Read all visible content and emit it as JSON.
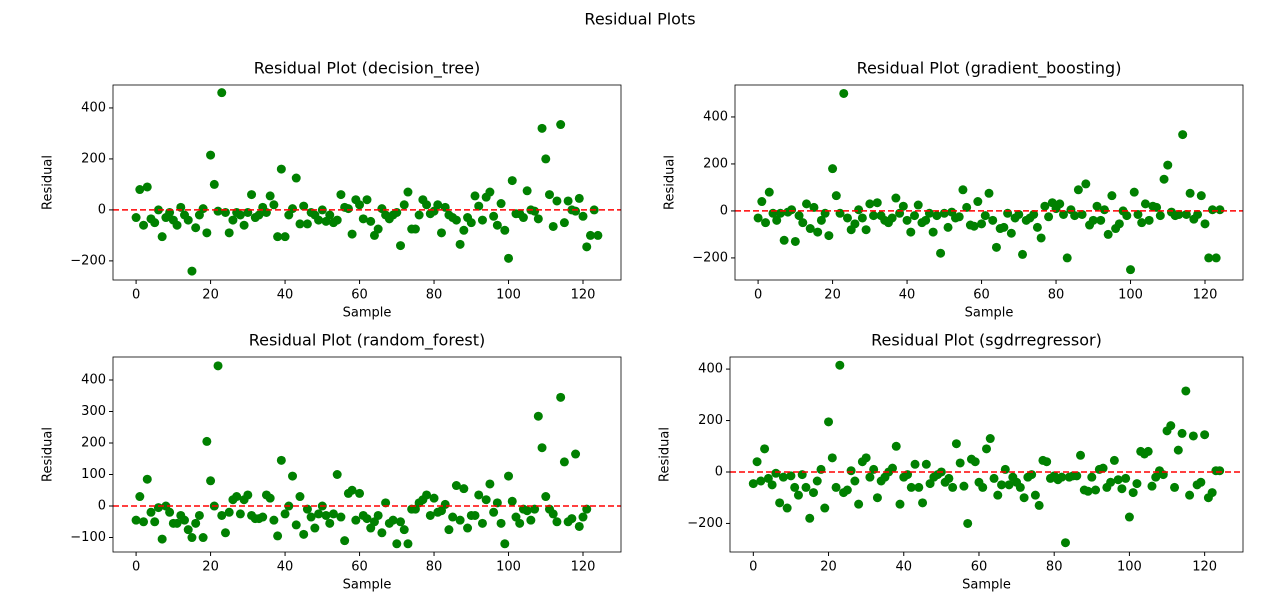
{
  "title": "Residual Plots",
  "chart_data": [
    {
      "type": "scatter",
      "title": "Residual Plot (decision_tree)",
      "xlabel": "Sample",
      "ylabel": "Residual",
      "color": "#008000",
      "hline": 0,
      "hline_color": "#ff0000",
      "xlim": [
        -6.2,
        130.2
      ],
      "xticks": [
        0,
        20,
        40,
        60,
        80,
        100,
        120
      ],
      "ylim": [
        -275,
        490
      ],
      "yticks": [
        {
          "value": -200,
          "label": "−200"
        },
        0,
        200,
        400
      ],
      "values": [
        -30,
        80,
        -60,
        90,
        -35,
        -50,
        0,
        -105,
        -30,
        -10,
        -40,
        -60,
        10,
        -20,
        -40,
        -240,
        -70,
        -20,
        5,
        -90,
        215,
        100,
        -5,
        460,
        -10,
        -90,
        -40,
        -10,
        -20,
        -60,
        -10,
        60,
        -30,
        -20,
        10,
        -10,
        55,
        20,
        -105,
        160,
        -105,
        -20,
        5,
        125,
        -55,
        15,
        -55,
        -10,
        -20,
        -40,
        0,
        -45,
        -20,
        -50,
        -40,
        60,
        10,
        5,
        -95,
        40,
        20,
        -35,
        40,
        -45,
        -100,
        -75,
        5,
        -20,
        -35,
        -20,
        -10,
        -140,
        20,
        70,
        -75,
        -75,
        -20,
        40,
        20,
        -15,
        -5,
        20,
        -90,
        10,
        -20,
        -30,
        -40,
        -135,
        -80,
        -30,
        -50,
        55,
        15,
        -40,
        50,
        70,
        -25,
        -60,
        25,
        -80,
        -190,
        115,
        -15,
        -15,
        -30,
        75,
        0,
        -5,
        -35,
        320,
        200,
        60,
        -65,
        35,
        335,
        -50,
        35,
        0,
        -5,
        45,
        -25,
        -145,
        -100,
        0,
        -100
      ]
    },
    {
      "type": "scatter",
      "title": "Residual Plot (gradient_boosting)",
      "xlabel": "Sample",
      "ylabel": "Residual",
      "color": "#008000",
      "hline": 0,
      "hline_color": "#ff0000",
      "xlim": [
        -6.2,
        130.2
      ],
      "xticks": [
        0,
        20,
        40,
        60,
        80,
        100,
        120
      ],
      "ylim": [
        -294,
        536
      ],
      "yticks": [
        {
          "value": -200,
          "label": "−200"
        },
        0,
        200,
        400
      ],
      "values": [
        -30,
        40,
        -50,
        80,
        -10,
        -40,
        -10,
        -125,
        -5,
        5,
        -130,
        -20,
        -50,
        30,
        -75,
        15,
        -90,
        -40,
        -10,
        -105,
        180,
        65,
        -10,
        500,
        -30,
        -80,
        -55,
        5,
        -30,
        -80,
        30,
        -20,
        35,
        -20,
        -40,
        -50,
        -30,
        55,
        -10,
        20,
        -40,
        -90,
        -20,
        25,
        -50,
        -40,
        -10,
        -90,
        -20,
        -180,
        -10,
        -70,
        -5,
        -30,
        -25,
        90,
        15,
        -60,
        -65,
        40,
        -55,
        -20,
        75,
        -40,
        -155,
        -75,
        -70,
        -10,
        -95,
        -30,
        -15,
        -185,
        -40,
        -30,
        -15,
        -70,
        -115,
        20,
        -25,
        35,
        10,
        30,
        -15,
        -200,
        5,
        -20,
        90,
        -15,
        115,
        -60,
        -40,
        20,
        -40,
        5,
        -100,
        65,
        -75,
        -55,
        0,
        -20,
        -250,
        80,
        -15,
        -50,
        30,
        -40,
        20,
        15,
        -20,
        135,
        195,
        -5,
        -20,
        -15,
        325,
        -15,
        75,
        -35,
        -15,
        65,
        -55,
        -200,
        5,
        -200,
        5
      ]
    },
    {
      "type": "scatter",
      "title": "Residual Plot (random_forest)",
      "xlabel": "Sample",
      "ylabel": "Residual",
      "color": "#008000",
      "hline": 0,
      "hline_color": "#ff0000",
      "xlim": [
        -6.2,
        130.2
      ],
      "xticks": [
        0,
        20,
        40,
        60,
        80,
        100,
        120
      ],
      "ylim": [
        -146,
        473
      ],
      "yticks": [
        {
          "value": -100,
          "label": "−100"
        },
        0,
        100,
        200,
        300,
        400
      ],
      "values": [
        -45,
        30,
        -50,
        85,
        -20,
        -50,
        -5,
        -105,
        0,
        -20,
        -55,
        -55,
        -30,
        -45,
        -75,
        -100,
        -55,
        -30,
        -100,
        205,
        80,
        0,
        445,
        -30,
        -85,
        -20,
        20,
        30,
        -25,
        20,
        35,
        -30,
        -40,
        -40,
        -35,
        35,
        25,
        -45,
        -95,
        145,
        -25,
        0,
        95,
        -60,
        30,
        -90,
        -10,
        -35,
        -70,
        -25,
        0,
        -30,
        -55,
        -25,
        100,
        -35,
        -110,
        40,
        50,
        -45,
        40,
        -30,
        -40,
        -70,
        -50,
        -30,
        -85,
        10,
        -55,
        -45,
        -120,
        -50,
        -75,
        -120,
        -10,
        -10,
        10,
        20,
        35,
        -30,
        25,
        -20,
        -15,
        5,
        -75,
        -35,
        65,
        -45,
        55,
        -70,
        -30,
        -30,
        35,
        -55,
        20,
        70,
        -20,
        10,
        -55,
        -120,
        95,
        15,
        -35,
        -55,
        -10,
        -15,
        -45,
        -10,
        285,
        185,
        30,
        -10,
        -25,
        -50,
        345,
        140,
        -50,
        -40,
        165,
        -65,
        -35,
        -10
      ]
    },
    {
      "type": "scatter",
      "title": "Residual Plot (sgdrregressor)",
      "xlabel": "Sample",
      "ylabel": "Residual",
      "color": "#008000",
      "hline": 0,
      "hline_color": "#ff0000",
      "xlim": [
        -6.2,
        130.2
      ],
      "xticks": [
        0,
        20,
        40,
        60,
        80,
        100,
        120
      ],
      "ylim": [
        -311,
        447
      ],
      "yticks": [
        {
          "value": -200,
          "label": "−200"
        },
        0,
        200,
        400
      ],
      "values": [
        -45,
        40,
        -35,
        90,
        -25,
        -50,
        -5,
        -120,
        -20,
        -140,
        -15,
        -60,
        -90,
        -10,
        -60,
        -180,
        -80,
        -35,
        10,
        -140,
        195,
        55,
        -60,
        415,
        -80,
        -70,
        5,
        -35,
        -125,
        40,
        55,
        -20,
        10,
        -100,
        -35,
        -20,
        0,
        15,
        100,
        -125,
        -20,
        -10,
        -60,
        30,
        -60,
        -120,
        30,
        -45,
        -20,
        -10,
        0,
        -40,
        -25,
        -60,
        110,
        35,
        -55,
        -200,
        50,
        40,
        -40,
        -60,
        90,
        130,
        -25,
        -90,
        -50,
        10,
        -50,
        -20,
        -40,
        -60,
        -100,
        -20,
        -10,
        -90,
        -130,
        45,
        40,
        -25,
        -15,
        -30,
        -20,
        -275,
        -20,
        -15,
        -15,
        65,
        -70,
        -75,
        -20,
        -70,
        10,
        15,
        -60,
        -40,
        45,
        -30,
        -65,
        -25,
        -175,
        -80,
        -45,
        80,
        70,
        80,
        -55,
        -20,
        5,
        -10,
        160,
        180,
        -60,
        85,
        150,
        315,
        -90,
        140,
        -50,
        -40,
        145,
        -100,
        -80,
        5,
        5
      ]
    }
  ]
}
